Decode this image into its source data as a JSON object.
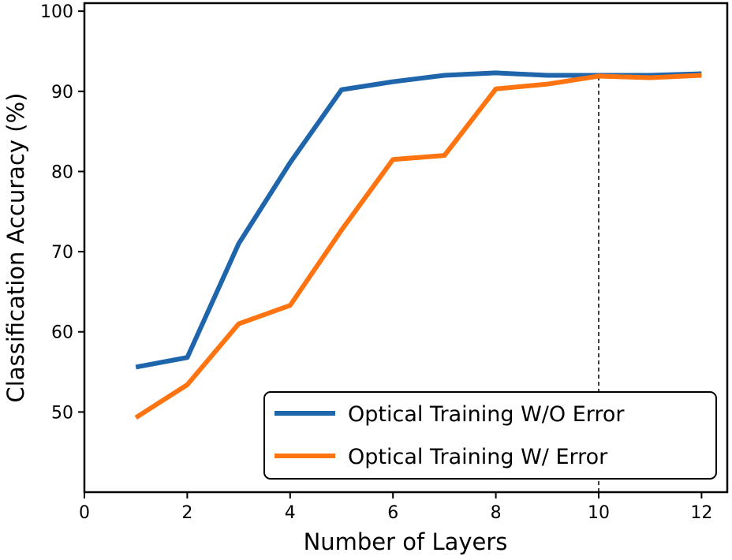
{
  "chart_data": {
    "type": "line",
    "title": "",
    "xlabel": "Number of Layers",
    "ylabel": "Classification Accuracy (%)",
    "xlim": [
      0,
      12.5
    ],
    "ylim": [
      40,
      101
    ],
    "xticks": [
      0,
      2,
      4,
      6,
      8,
      10,
      12
    ],
    "yticks": [
      50,
      60,
      70,
      80,
      90,
      100
    ],
    "grid": false,
    "legend_position": "bottom-right",
    "x": [
      1,
      2,
      3,
      4,
      5,
      6,
      7,
      8,
      9,
      10,
      11,
      12
    ],
    "series": [
      {
        "name": "Optical Training W/O Error",
        "color": "#1f65ab",
        "values": [
          55.6,
          56.8,
          71.0,
          81.1,
          90.2,
          91.2,
          92.0,
          92.3,
          92.0,
          92.0,
          92.0,
          92.2
        ]
      },
      {
        "name": "Optical Training W/ Error",
        "color": "#ff7410",
        "values": [
          49.3,
          53.4,
          61.0,
          63.3,
          72.7,
          81.5,
          82.0,
          90.3,
          90.9,
          91.9,
          91.7,
          92.0
        ]
      }
    ],
    "annotations": [
      {
        "type": "vertical-dashed-line",
        "x": 10,
        "to_y": 92.0
      }
    ]
  }
}
